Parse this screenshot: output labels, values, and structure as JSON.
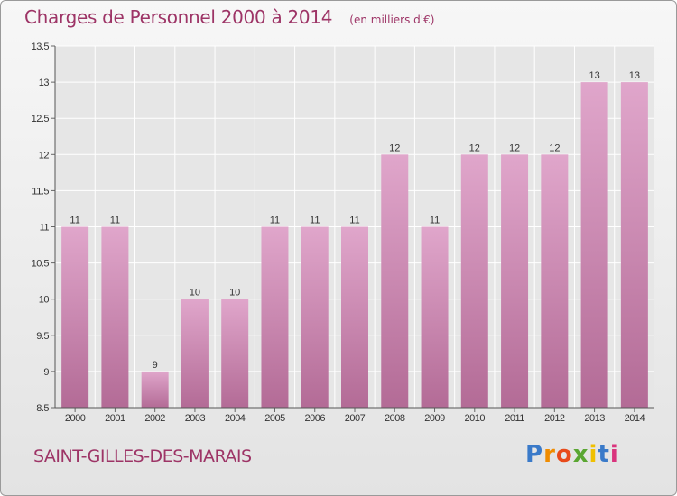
{
  "header": {
    "title": "Charges de Personnel 2000 à 2014",
    "subtitle": "(en milliers d'€)"
  },
  "footer": {
    "commune": "SAINT-GILLES-DES-MARAIS",
    "logo_letters": [
      "P",
      "r",
      "o",
      "x",
      "i",
      "t",
      "i"
    ],
    "logo_colors": [
      "#3a7ac9",
      "#f08c00",
      "#e84a1a",
      "#5aa632",
      "#f0c000",
      "#3a7ac9",
      "#d9347d"
    ]
  },
  "chart_data": {
    "type": "bar",
    "categories": [
      "2000",
      "2001",
      "2002",
      "2003",
      "2004",
      "2005",
      "2006",
      "2007",
      "2008",
      "2009",
      "2010",
      "2011",
      "2012",
      "2013",
      "2014"
    ],
    "values": [
      11,
      11,
      9,
      10,
      10,
      11,
      11,
      11,
      12,
      11,
      12,
      12,
      12,
      13,
      13
    ],
    "data_labels": [
      "11",
      "11",
      "9",
      "10",
      "10",
      "11",
      "11",
      "11",
      "12",
      "11",
      "12",
      "12",
      "12",
      "13",
      "13"
    ],
    "ylim": [
      8.5,
      13.5
    ],
    "yticks": [
      "8.5",
      "9",
      "9.5",
      "10",
      "10.5",
      "11",
      "11.5",
      "12",
      "12.5",
      "13",
      "13.5"
    ],
    "xlabel": "",
    "ylabel": "",
    "grid": true,
    "bar_color_top": "#e0a6cb",
    "bar_color_bottom": "#b36b96"
  }
}
